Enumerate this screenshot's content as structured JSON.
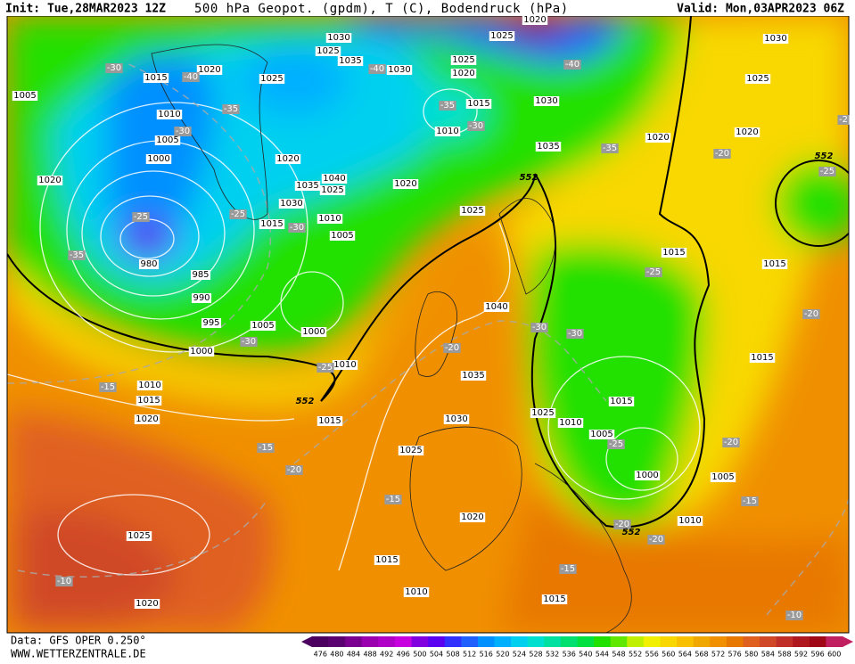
{
  "header": {
    "init": "Init: Tue,28MAR2023 12Z",
    "title": "500 hPa Geopot. (gpdm), T (C), Bodendruck (hPa)",
    "valid": "Valid: Mon,03APR2023 06Z"
  },
  "footer": {
    "source": "Data: GFS OPER 0.250°",
    "website": "WWW.WETTERZENTRALE.DE"
  },
  "map": {
    "pressure_labels": [
      "1030",
      "1025",
      "1020",
      "1030",
      "1015",
      "1020",
      "1025",
      "1025",
      "1035",
      "1030",
      "1025",
      "1020",
      "1005",
      "1010",
      "1015",
      "1010",
      "1030",
      "1025",
      "1005",
      "1000",
      "1020",
      "1020",
      "1035",
      "1020",
      "1020",
      "1040",
      "1035",
      "1025",
      "1020",
      "1030",
      "1025",
      "1010",
      "1015",
      "1005",
      "980",
      "985",
      "990",
      "1015",
      "1015",
      "1040",
      "995",
      "1005",
      "1000",
      "1000",
      "1010",
      "1015",
      "1035",
      "1010",
      "1015",
      "1020",
      "1015",
      "1030",
      "1015",
      "1025",
      "1010",
      "1005",
      "1025",
      "1000",
      "1005",
      "1020",
      "1010",
      "1025",
      "1015",
      "1010",
      "1015",
      "1020"
    ],
    "temperature_labels": [
      "-30",
      "-40",
      "-35",
      "-30",
      "-40",
      "-35",
      "-30",
      "-40",
      "-35",
      "-20",
      "-25",
      "-25",
      "-25",
      "-30",
      "-35",
      "-25",
      "-20",
      "-30",
      "-30",
      "-20",
      "-30",
      "-25",
      "-15",
      "-25",
      "-20",
      "-15",
      "-20",
      "-15",
      "-15",
      "-20",
      "-20",
      "-15",
      "-10",
      "-10",
      "-2"
    ],
    "contour_552_labels": [
      "552",
      "552",
      "552",
      "552"
    ]
  },
  "colorbar": {
    "values": [
      476,
      480,
      484,
      488,
      492,
      496,
      500,
      504,
      508,
      512,
      516,
      520,
      524,
      528,
      532,
      536,
      540,
      544,
      548,
      552,
      556,
      560,
      564,
      568,
      572,
      576,
      580,
      584,
      588,
      592,
      596,
      600
    ],
    "colors": [
      "#4b0060",
      "#5a0070",
      "#7a0090",
      "#9a00b0",
      "#b000c8",
      "#c800e0",
      "#8000e0",
      "#5a00f0",
      "#3030ff",
      "#2060ff",
      "#0090ff",
      "#00b0ff",
      "#00d0f0",
      "#00e0d0",
      "#00e0a0",
      "#00e070",
      "#00e040",
      "#20e000",
      "#60e800",
      "#c0f000",
      "#f0f000",
      "#f8d800",
      "#f8c000",
      "#f0a800",
      "#f09000",
      "#e87800",
      "#e06020",
      "#d04828",
      "#c03028",
      "#b01820",
      "#a00818",
      "#c02060"
    ]
  }
}
